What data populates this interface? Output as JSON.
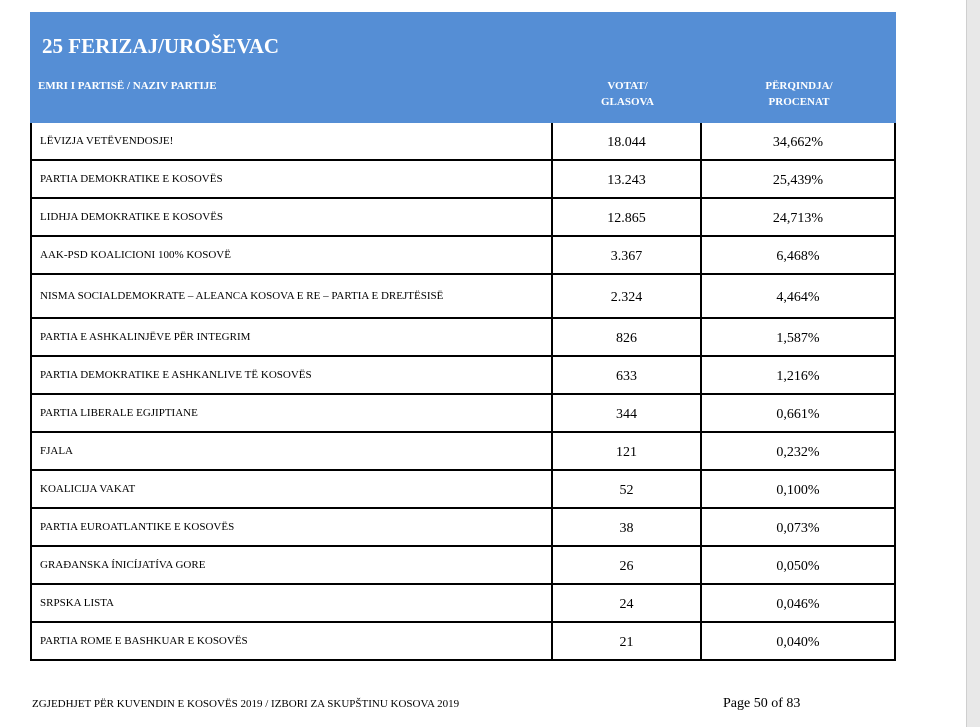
{
  "header": {
    "title": "25  FERIZAJ/UROŠEVAC",
    "columns": [
      "EMRI I PARTISË / NAZIV PARTIJE",
      "VOTAT/\nGLASOVA",
      "PËRQINDJA/\nPROCENAT"
    ]
  },
  "table": {
    "rows": [
      [
        "LËVIZJA VETËVENDOSJE!",
        "18.044",
        "34,662%"
      ],
      [
        "PARTIA DEMOKRATIKE E KOSOVËS",
        "13.243",
        "25,439%"
      ],
      [
        "LIDHJA DEMOKRATIKE E KOSOVËS",
        "12.865",
        "24,713%"
      ],
      [
        "AAK-PSD KOALICIONI 100% KOSOVË",
        "3.367",
        "6,468%"
      ],
      [
        "NISMA SOCIALDEMOKRATE – ALEANCA KOSOVA E RE – PARTIA E DREJTËSISË",
        "2.324",
        "4,464%"
      ],
      [
        "PARTIA E ASHKALINJËVE PËR INTEGRIM",
        "826",
        "1,587%"
      ],
      [
        "PARTIA DEMOKRATIKE E ASHKANLIVE TË KOSOVËS",
        "633",
        "1,216%"
      ],
      [
        "PARTIA LIBERALE EGJIPTIANE",
        "344",
        "0,661%"
      ],
      [
        "FJALA",
        "121",
        "0,232%"
      ],
      [
        "KOALICIJA VAKAT",
        "52",
        "0,100%"
      ],
      [
        "PARTIA EUROATLANTIKE E KOSOVËS",
        "38",
        "0,073%"
      ],
      [
        "GRAĐANSKA ÍNICÍJATÍVA GORE",
        "26",
        "0,050%"
      ],
      [
        "SRPSKA LISTA",
        "24",
        "0,046%"
      ],
      [
        "PARTIA ROME E BASHKUAR E KOSOVËS",
        "21",
        "0,040%"
      ]
    ]
  },
  "footer": {
    "text": "ZGJEDHJET PËR KUVENDIN E KOSOVËS 2019 / IZBORI ZA SKUPŠTINU KOSOVA 2019",
    "page": "Page 50 of 83"
  }
}
